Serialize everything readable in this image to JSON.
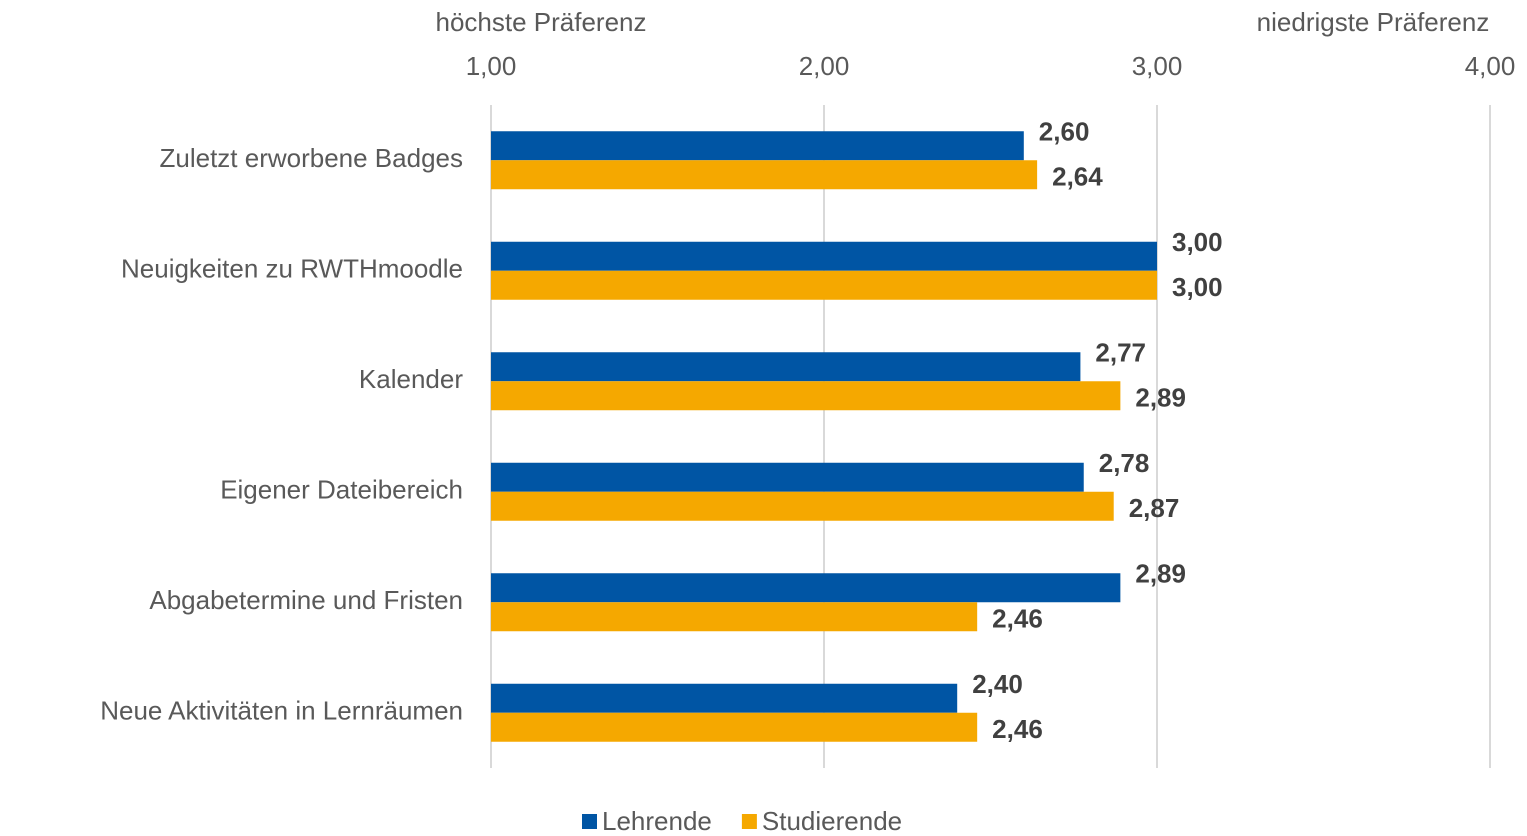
{
  "chart_data": {
    "type": "bar",
    "orientation": "horizontal",
    "annotations": [
      "höchste Präferenz",
      "niedrigste Präferenz"
    ],
    "categories": [
      "Zuletzt erworbene Badges",
      "Neuigkeiten zu RWTHmoodle",
      "Kalender",
      "Eigener Dateibereich",
      "Abgabetermine und Fristen",
      "Neue Aktivitäten in Lernräumen"
    ],
    "series": [
      {
        "name": "Lehrende",
        "color": "#0055a4",
        "values": [
          2.6,
          3.0,
          2.77,
          2.78,
          2.89,
          2.4
        ],
        "value_labels": [
          "2,60",
          "3,00",
          "2,77",
          "2,78",
          "2,89",
          "2,40"
        ]
      },
      {
        "name": "Studierende",
        "color": "#f5a800",
        "values": [
          2.64,
          3.0,
          2.89,
          2.87,
          2.46,
          2.46
        ],
        "value_labels": [
          "2,64",
          "3,00",
          "2,89",
          "2,87",
          "2,46",
          "2,46"
        ]
      }
    ],
    "xlim": [
      1,
      4
    ],
    "xticks": [
      {
        "value": 1,
        "label": "1,00"
      },
      {
        "value": 2,
        "label": "2,00"
      },
      {
        "value": 3,
        "label": "3,00"
      },
      {
        "value": 4,
        "label": "4,00"
      }
    ],
    "grid": true,
    "legend": "bottom"
  }
}
